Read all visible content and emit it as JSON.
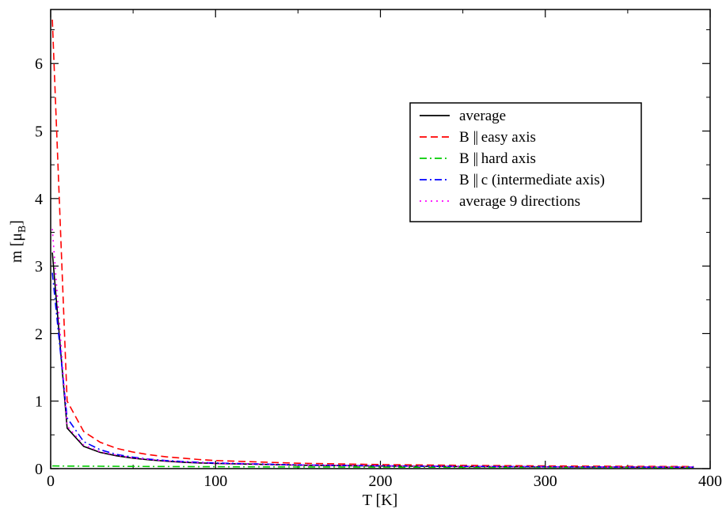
{
  "chart_data": {
    "type": "line",
    "title": "",
    "xlabel": "T   [K]",
    "ylabel_main": "m   [μ",
    "ylabel_sub": "B",
    "ylabel_end": "]",
    "xlim": [
      0,
      400
    ],
    "ylim": [
      0,
      6.8
    ],
    "xticks": [
      0,
      100,
      200,
      300,
      400
    ],
    "yticks": [
      0,
      1,
      2,
      3,
      4,
      5,
      6
    ],
    "xtick_labels": [
      "0",
      "100",
      "200",
      "300",
      "400"
    ],
    "ytick_labels": [
      "0",
      "1",
      "2",
      "3",
      "4",
      "5",
      "6"
    ],
    "grid": false,
    "legend_position": "upper-right",
    "series": [
      {
        "name": "average",
        "color": "#000000",
        "dash": "solid",
        "x": [
          1,
          10,
          20,
          30,
          40,
          50,
          60,
          70,
          80,
          90,
          100,
          150,
          200,
          250,
          300,
          350,
          390
        ],
        "y": [
          3.2,
          0.6,
          0.33,
          0.24,
          0.19,
          0.155,
          0.13,
          0.11,
          0.095,
          0.085,
          0.077,
          0.052,
          0.039,
          0.031,
          0.026,
          0.022,
          0.02
        ]
      },
      {
        "name": "B || easy axis",
        "color": "#ff0000",
        "dash": "dashed",
        "x": [
          1,
          10,
          20,
          30,
          40,
          50,
          60,
          70,
          80,
          90,
          100,
          150,
          200,
          250,
          300,
          350,
          390
        ],
        "y": [
          6.65,
          1.0,
          0.55,
          0.39,
          0.3,
          0.245,
          0.205,
          0.175,
          0.155,
          0.135,
          0.12,
          0.08,
          0.06,
          0.048,
          0.04,
          0.034,
          0.031
        ]
      },
      {
        "name": "B || hard axis",
        "color": "#00cc00",
        "dash": "dashdot",
        "x": [
          1,
          10,
          50,
          100,
          150,
          200,
          250,
          300,
          350,
          390
        ],
        "y": [
          0.04,
          0.038,
          0.033,
          0.028,
          0.025,
          0.022,
          0.02,
          0.018,
          0.017,
          0.016
        ]
      },
      {
        "name": "B || c (intermediate axis)",
        "color": "#0000ff",
        "dash": "dashdot",
        "x": [
          1,
          10,
          20,
          30,
          40,
          50,
          60,
          70,
          80,
          90,
          100,
          150,
          200,
          250,
          300,
          350,
          390
        ],
        "y": [
          2.9,
          0.75,
          0.4,
          0.28,
          0.21,
          0.17,
          0.14,
          0.12,
          0.105,
          0.093,
          0.083,
          0.056,
          0.042,
          0.034,
          0.028,
          0.024,
          0.022
        ]
      },
      {
        "name": "average 9 directions",
        "color": "#ff00ff",
        "dash": "dotted",
        "x": [
          1,
          10,
          20,
          30,
          40,
          50,
          60,
          70,
          80,
          90,
          100,
          150,
          200,
          250,
          300,
          350,
          390
        ],
        "y": [
          3.55,
          0.63,
          0.35,
          0.25,
          0.2,
          0.16,
          0.135,
          0.115,
          0.1,
          0.088,
          0.08,
          0.054,
          0.041,
          0.033,
          0.027,
          0.023,
          0.021
        ]
      }
    ]
  },
  "legend": {
    "entries": [
      {
        "label": "average",
        "sym": "",
        "suffix": ""
      },
      {
        "label": "B ",
        "sym": "||",
        "suffix": " easy axis"
      },
      {
        "label": "B ",
        "sym": "||",
        "suffix": " hard axis"
      },
      {
        "label": "B ",
        "sym": "||",
        "suffix": " c (intermediate axis)"
      },
      {
        "label": "average 9 directions",
        "sym": "",
        "suffix": ""
      }
    ]
  }
}
